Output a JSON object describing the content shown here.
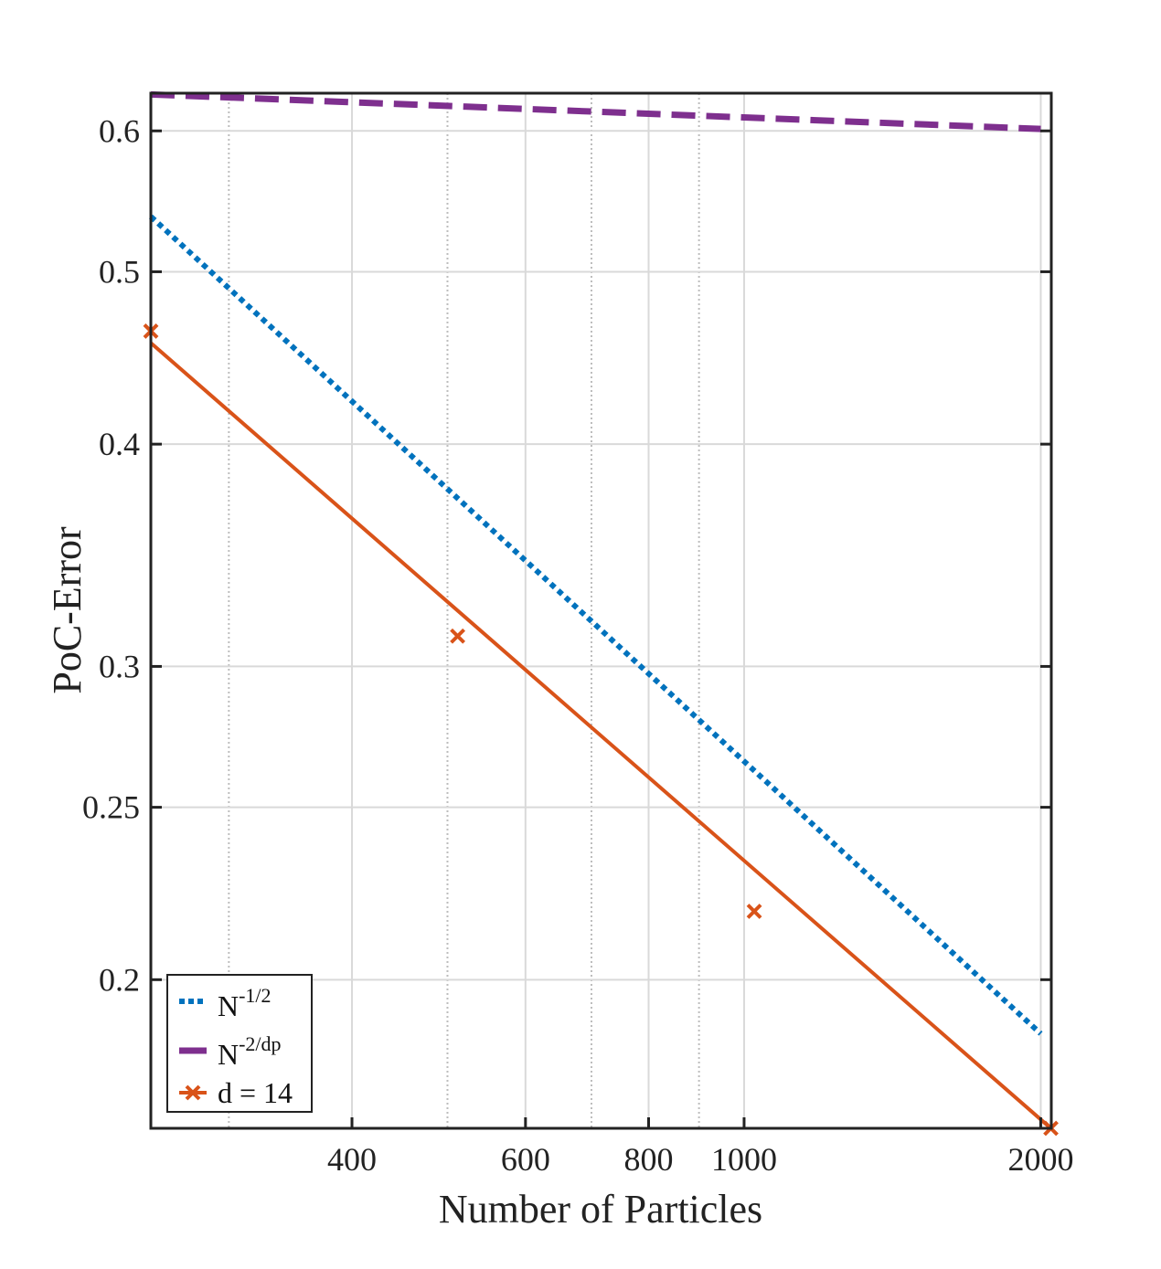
{
  "chart_data": {
    "type": "line",
    "xscale": "log",
    "yscale": "log",
    "xlabel": "Number of Particles",
    "ylabel": "PoC-Error",
    "xlim": [
      250,
      2050
    ],
    "ylim": [
      0.165,
      0.63
    ],
    "xticks": [
      400,
      600,
      800,
      1000,
      2000
    ],
    "xtick_labels": [
      "400",
      "600",
      "800",
      "1000",
      "2000"
    ],
    "yticks": [
      0.2,
      0.25,
      0.3,
      0.4,
      0.5,
      0.6
    ],
    "ytick_labels": [
      "0.2",
      "0.25",
      "0.3",
      "0.4",
      "0.5",
      "0.6"
    ],
    "minor_xgrid": [
      300,
      500,
      700,
      900
    ],
    "grid": true,
    "legend_position": "bottom-left",
    "series": [
      {
        "name": "N^{-1/2}",
        "legend_base": "N",
        "legend_sup": "-1/2",
        "style": "dotted",
        "color": "#0072BD",
        "x": [
          250,
          2000
        ],
        "y": [
          0.537,
          0.1865
        ]
      },
      {
        "name": "N^{-2/dp}",
        "legend_base": "N",
        "legend_sup": "-2/dp",
        "style": "dashed",
        "color": "#7E2F8E",
        "x": [
          250,
          2000
        ],
        "y": [
          0.629,
          0.6015
        ]
      },
      {
        "name": "d = 14",
        "legend_base": "d = 14",
        "legend_sup": "",
        "style": "solid",
        "marker": "x",
        "color": "#D95319",
        "x": [
          250,
          512,
          1024,
          2048
        ],
        "y": [
          0.463,
          0.312,
          0.2185,
          0.165
        ],
        "fit_y_at_start": 0.456
      }
    ]
  }
}
